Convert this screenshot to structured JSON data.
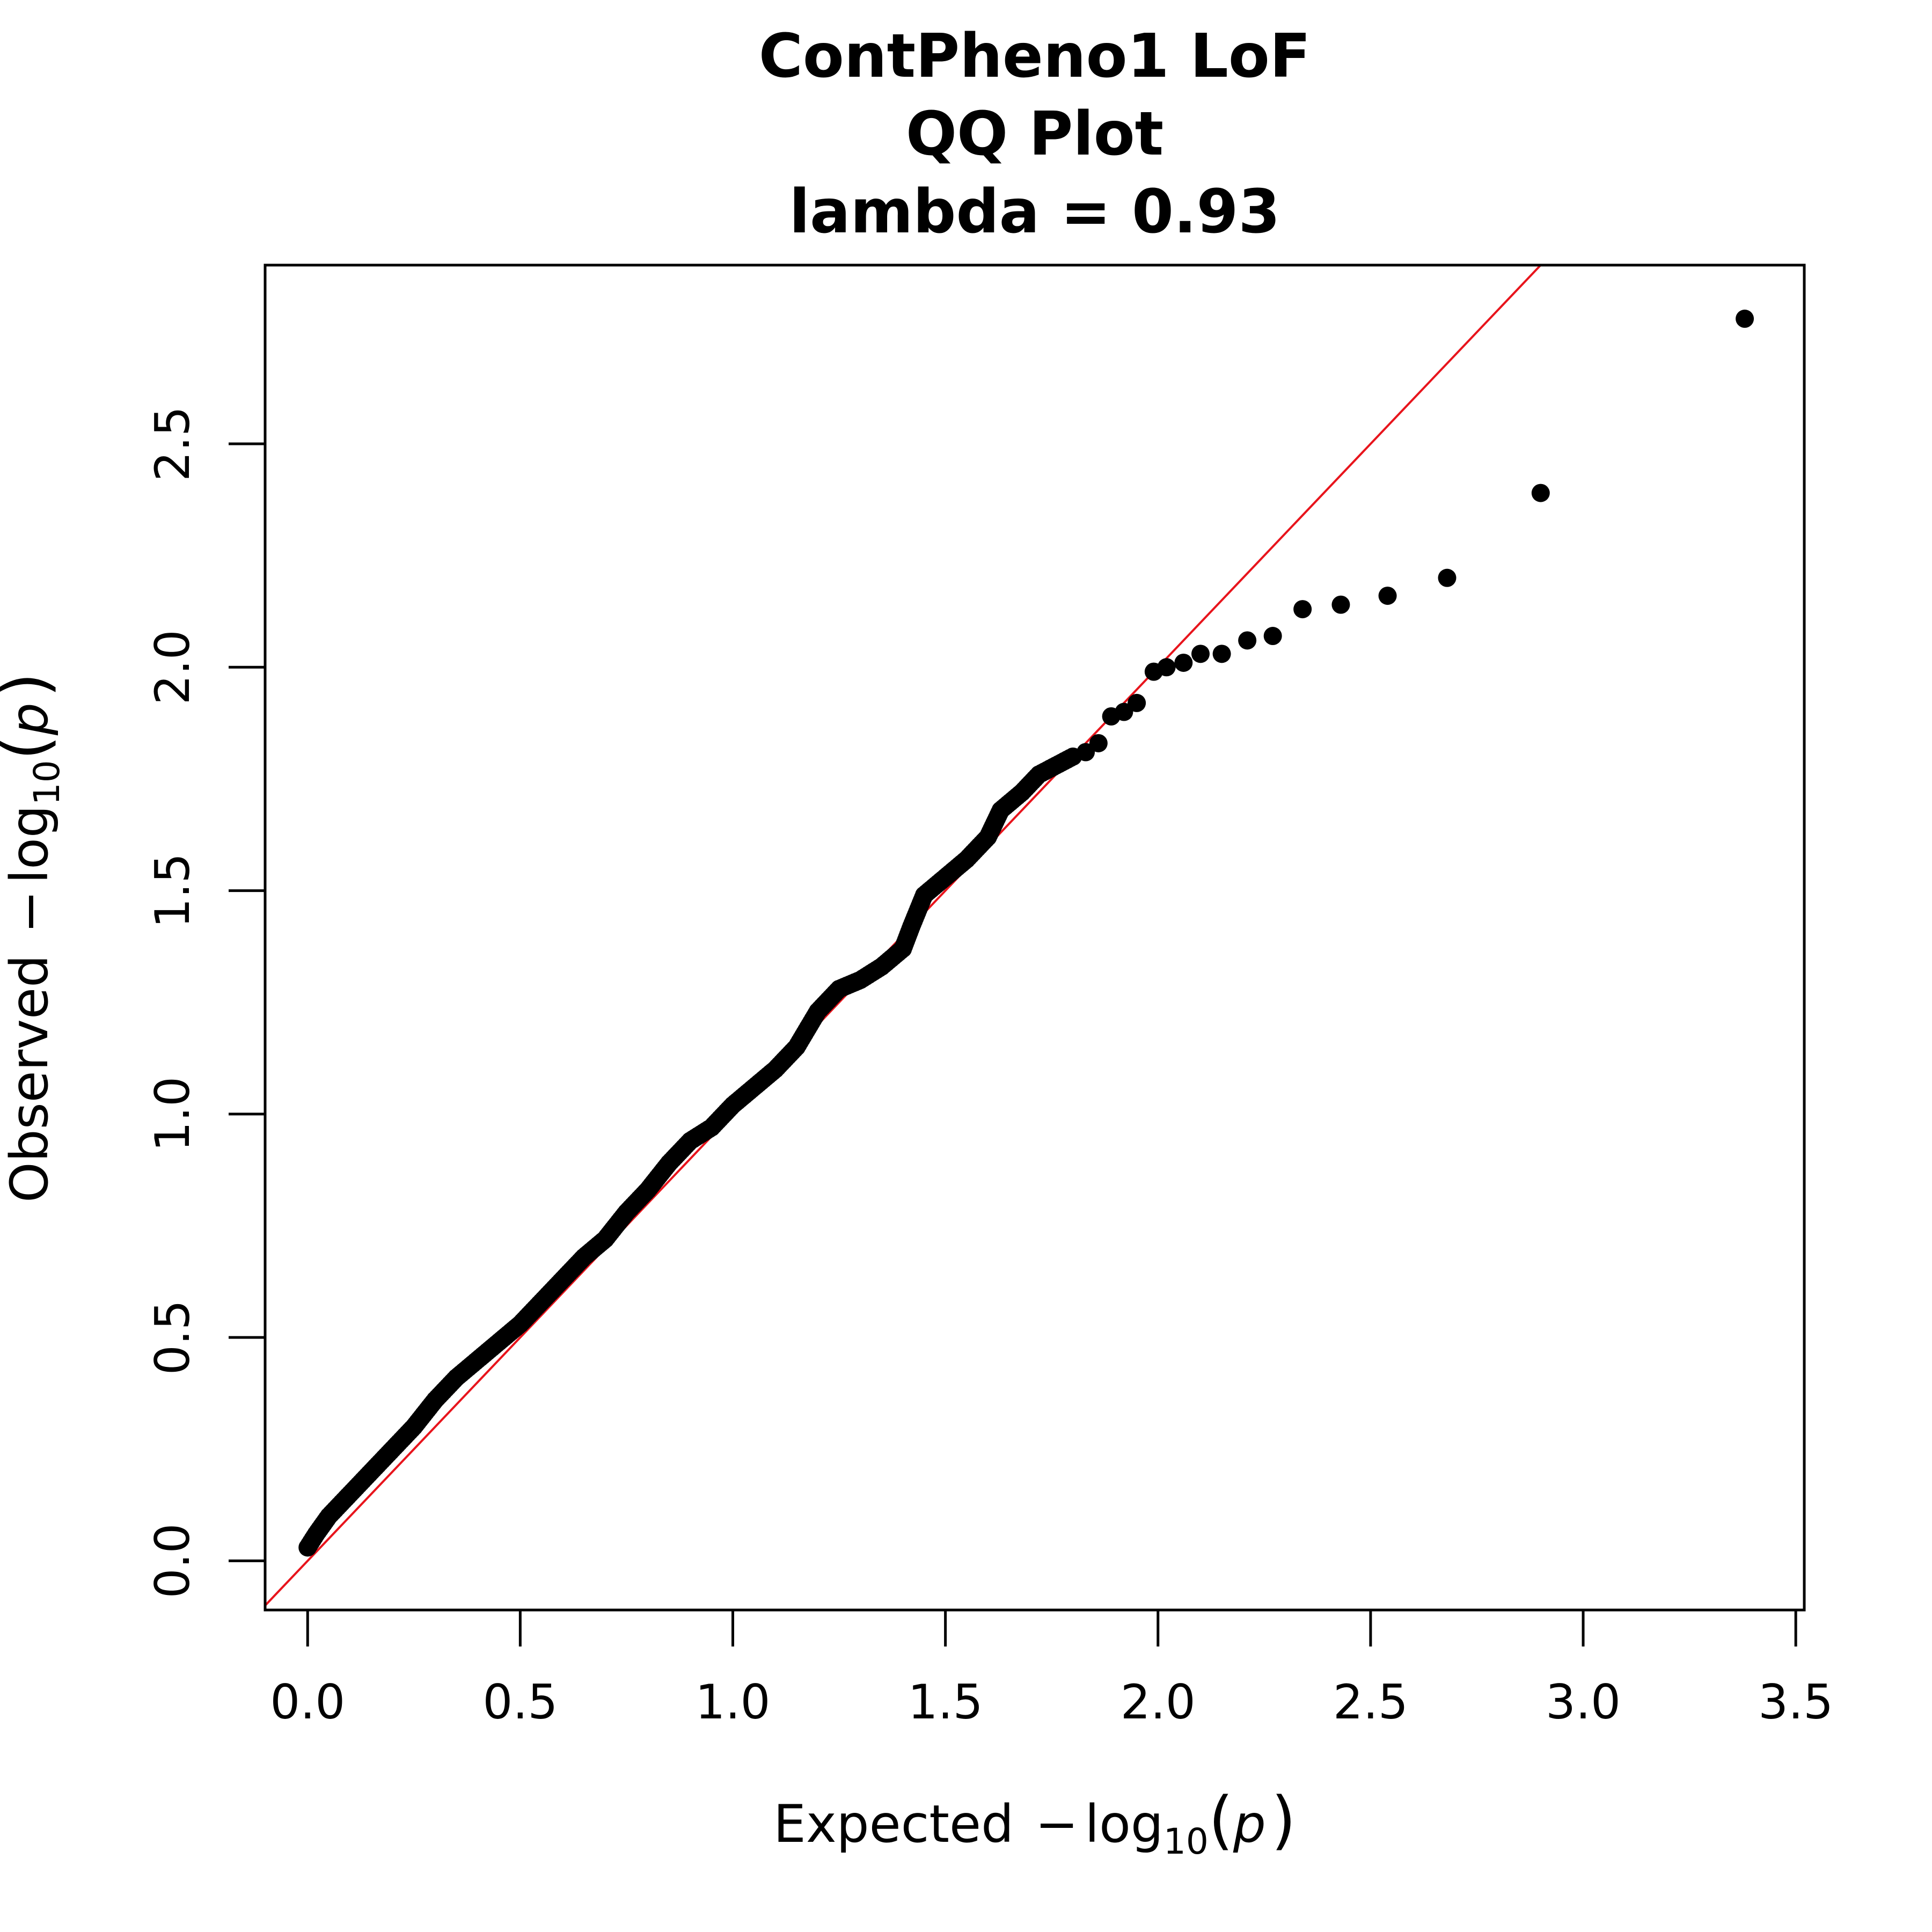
{
  "chart_data": {
    "type": "scatter",
    "title_lines": [
      "ContPheno1 LoF",
      "QQ Plot",
      "lambda = 0.93"
    ],
    "xlabel": {
      "prefix": "Expected",
      "minus": "−",
      "log": "log",
      "sub": "10",
      "open": "(",
      "var": "p",
      "close": ")"
    },
    "ylabel": {
      "prefix": "Observed",
      "minus": "−",
      "log": "log",
      "sub": "10",
      "open": "(",
      "var": "p",
      "close": ")"
    },
    "xlim": [
      -0.1,
      3.52
    ],
    "ylim": [
      -0.11,
      2.9
    ],
    "xticks": [
      "0.0",
      "0.5",
      "1.0",
      "1.5",
      "2.0",
      "2.5",
      "3.0",
      "3.5"
    ],
    "yticks": [
      "0.0",
      "0.5",
      "1.0",
      "1.5",
      "2.0",
      "2.5"
    ],
    "reference_line": {
      "description": "y = x",
      "color": "#e8141c"
    },
    "point_color": "#000000",
    "dense_curve": [
      [
        0.0,
        0.03
      ],
      [
        0.02,
        0.06
      ],
      [
        0.05,
        0.1
      ],
      [
        0.1,
        0.15
      ],
      [
        0.15,
        0.2
      ],
      [
        0.2,
        0.25
      ],
      [
        0.25,
        0.3
      ],
      [
        0.3,
        0.36
      ],
      [
        0.35,
        0.41
      ],
      [
        0.4,
        0.45
      ],
      [
        0.45,
        0.49
      ],
      [
        0.5,
        0.53
      ],
      [
        0.55,
        0.58
      ],
      [
        0.6,
        0.63
      ],
      [
        0.65,
        0.68
      ],
      [
        0.7,
        0.72
      ],
      [
        0.75,
        0.78
      ],
      [
        0.8,
        0.83
      ],
      [
        0.85,
        0.89
      ],
      [
        0.9,
        0.94
      ],
      [
        0.95,
        0.97
      ],
      [
        1.0,
        1.02
      ],
      [
        1.05,
        1.06
      ],
      [
        1.1,
        1.1
      ],
      [
        1.15,
        1.15
      ],
      [
        1.2,
        1.23
      ],
      [
        1.25,
        1.28
      ],
      [
        1.3,
        1.3
      ],
      [
        1.35,
        1.33
      ],
      [
        1.4,
        1.37
      ],
      [
        1.42,
        1.42
      ],
      [
        1.45,
        1.49
      ],
      [
        1.5,
        1.53
      ],
      [
        1.55,
        1.57
      ],
      [
        1.6,
        1.62
      ],
      [
        1.63,
        1.68
      ],
      [
        1.68,
        1.72
      ],
      [
        1.72,
        1.76
      ],
      [
        1.76,
        1.78
      ],
      [
        1.8,
        1.8
      ]
    ],
    "sparse_points": [
      [
        1.83,
        1.81
      ],
      [
        1.86,
        1.83
      ],
      [
        1.89,
        1.89
      ],
      [
        1.92,
        1.9
      ],
      [
        1.95,
        1.92
      ],
      [
        1.99,
        1.99
      ],
      [
        2.02,
        2.0
      ],
      [
        2.06,
        2.01
      ],
      [
        2.1,
        2.03
      ],
      [
        2.15,
        2.03
      ],
      [
        2.21,
        2.06
      ],
      [
        2.27,
        2.07
      ],
      [
        2.34,
        2.13
      ],
      [
        2.43,
        2.14
      ],
      [
        2.54,
        2.16
      ],
      [
        2.68,
        2.2
      ],
      [
        2.9,
        2.39
      ],
      [
        3.38,
        2.78
      ]
    ]
  }
}
